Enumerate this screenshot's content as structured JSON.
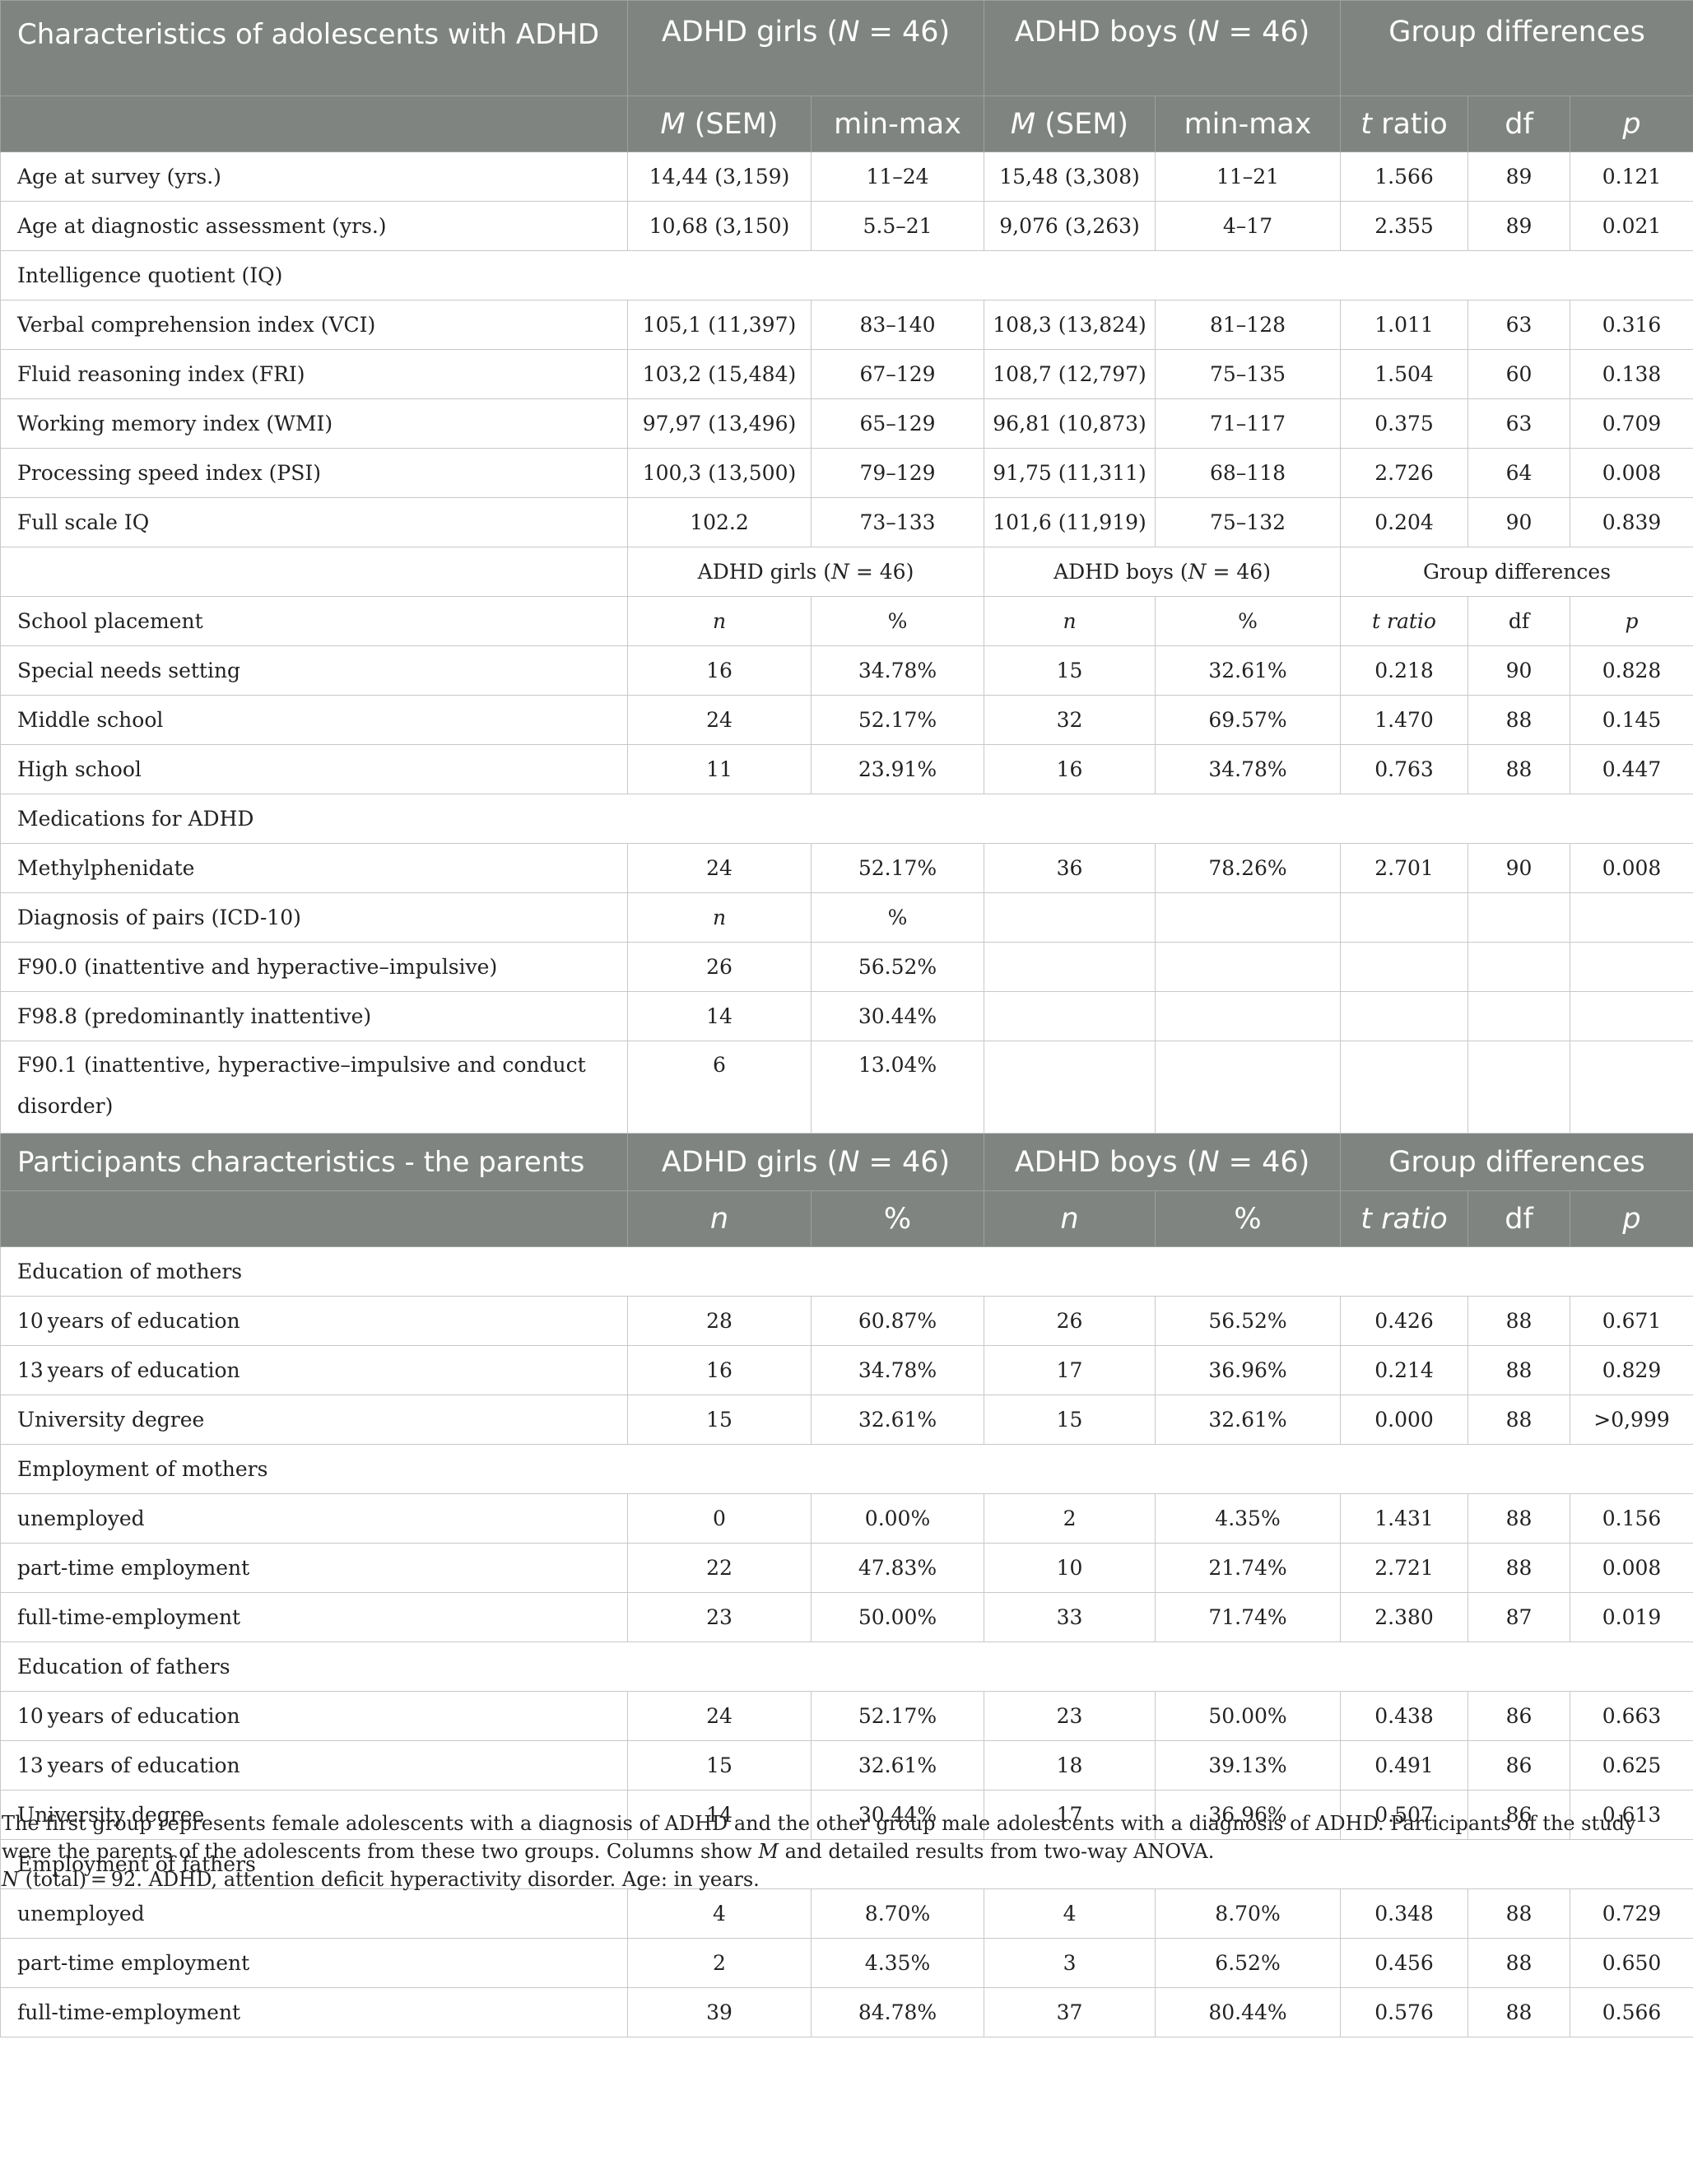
{
  "section1": {
    "title": "Characteristics of adolescents with ADHD",
    "group_headers": [
      "ADHD girls (N = 46)",
      "ADHD boys (N = 46)",
      "Group differences"
    ],
    "subheaders": [
      "M (SEM)",
      "min-max",
      "M (SEM)",
      "min-max",
      "t ratio",
      "df",
      "p"
    ],
    "rows": [
      [
        "Age at survey (yrs.)",
        "14,44 (3,159)",
        "11–24",
        "15,48 (3,308)",
        "11–21",
        "1.566",
        "89",
        "0.121"
      ],
      [
        "Age at diagnostic assessment (yrs.)",
        "10,68 (3,150)",
        "5.5–21",
        "9,076 (3,263)",
        "4–17",
        "2.355",
        "89",
        "0.021"
      ]
    ],
    "iq_label": "Intelligence quotient (IQ)",
    "iq_rows": [
      [
        "Verbal comprehension index (VCI)",
        "105,1 (11,397)",
        "83–140",
        "108,3 (13,824)",
        "81–128",
        "1.011",
        "63",
        "0.316"
      ],
      [
        "Fluid reasoning index (FRI)",
        "103,2 (15,484)",
        "67–129",
        "108,7 (12,797)",
        "75–135",
        "1.504",
        "60",
        "0.138"
      ],
      [
        "Working memory index (WMI)",
        "97,97 (13,496)",
        "65–129",
        "96,81 (10,873)",
        "71–117",
        "0.375",
        "63",
        "0.709"
      ],
      [
        "Processing speed index (PSI)",
        "100,3 (13,500)",
        "79–129",
        "91,75 (11,311)",
        "68–118",
        "2.726",
        "64",
        "0.008"
      ],
      [
        "Full scale IQ",
        "102.2",
        "73–133",
        "101,6 (11,919)",
        "75–132",
        "0.204",
        "90",
        "0.839"
      ]
    ],
    "sub_group_headers": [
      "ADHD girls (N = 46)",
      "ADHD boys (N = 46)",
      "Group differences"
    ],
    "school_label": "School placement",
    "school_subheaders": [
      "n",
      "%",
      "n",
      "%",
      "t ratio",
      "df",
      "p"
    ],
    "school_rows": [
      [
        "Special needs setting",
        "16",
        "34.78%",
        "15",
        "32.61%",
        "0.218",
        "90",
        "0.828"
      ],
      [
        "Middle school",
        "24",
        "52.17%",
        "32",
        "69.57%",
        "1.470",
        "88",
        "0.145"
      ],
      [
        "High school",
        "11",
        "23.91%",
        "16",
        "34.78%",
        "0.763",
        "88",
        "0.447"
      ]
    ],
    "medication_label": "Medications for ADHD",
    "medication_rows": [
      [
        "Methylphenidate",
        "24",
        "52.17%",
        "36",
        "78.26%",
        "2.701",
        "90",
        "0.008"
      ]
    ],
    "diagnosis_label": "Diagnosis of pairs (ICD-10)",
    "diagnosis_subheaders": [
      "n",
      "%"
    ],
    "diagnosis_rows": [
      [
        "F90.0 (inattentive and hyperactive–impulsive)",
        "26",
        "56.52%"
      ],
      [
        "F98.8 (predominantly inattentive)",
        "14",
        "30.44%"
      ],
      [
        "F90.1 (inattentive, hyperactive–impulsive and conduct disorder)",
        "6",
        "13.04%"
      ]
    ]
  },
  "section2": {
    "title": "Participants characteristics - the parents",
    "group_headers": [
      "ADHD girls (N = 46)",
      "ADHD boys (N = 46)",
      "Group differences"
    ],
    "subheaders": [
      "n",
      "%",
      "n",
      "%",
      "t ratio",
      "df",
      "p"
    ],
    "groups": [
      {
        "label": "Education of mothers",
        "rows": [
          [
            "10 years of education",
            "28",
            "60.87%",
            "26",
            "56.52%",
            "0.426",
            "88",
            "0.671"
          ],
          [
            "13 years of education",
            "16",
            "34.78%",
            "17",
            "36.96%",
            "0.214",
            "88",
            "0.829"
          ],
          [
            "University degree",
            "15",
            "32.61%",
            "15",
            "32.61%",
            "0.000",
            "88",
            ">0,999"
          ]
        ]
      },
      {
        "label": "Employment of mothers",
        "rows": [
          [
            "unemployed",
            "0",
            "0.00%",
            "2",
            "4.35%",
            "1.431",
            "88",
            "0.156"
          ],
          [
            "part-time employment",
            "22",
            "47.83%",
            "10",
            "21.74%",
            "2.721",
            "88",
            "0.008"
          ],
          [
            "full-time-employment",
            "23",
            "50.00%",
            "33",
            "71.74%",
            "2.380",
            "87",
            "0.019"
          ]
        ]
      },
      {
        "label": "Education of fathers",
        "rows": [
          [
            "10 years of education",
            "24",
            "52.17%",
            "23",
            "50.00%",
            "0.438",
            "86",
            "0.663"
          ],
          [
            "13 years of education",
            "15",
            "32.61%",
            "18",
            "39.13%",
            "0.491",
            "86",
            "0.625"
          ],
          [
            "University degree",
            "14",
            "30.44%",
            "17",
            "36.96%",
            "0.507",
            "86",
            "0.613"
          ]
        ]
      },
      {
        "label": "Employment of fathers",
        "rows": [
          [
            "unemployed",
            "4",
            "8.70%",
            "4",
            "8.70%",
            "0.348",
            "88",
            "0.729"
          ],
          [
            "part-time employment",
            "2",
            "4.35%",
            "3",
            "6.52%",
            "0.456",
            "88",
            "0.650"
          ],
          [
            "full-time-employment",
            "39",
            "84.78%",
            "37",
            "80.44%",
            "0.576",
            "88",
            "0.566"
          ]
        ]
      }
    ]
  },
  "footnote": {
    "line1": "The first group represents female adolescents with a diagnosis of ADHD and the other group male adolescents with a diagnosis of ADHD. Participants of the study were the parents of the adolescents from these two groups. Columns show M and detailed results from two-way ANOVA.",
    "line2": "N (total) = 92. ADHD, attention deficit hyperactivity disorder. Age: in years."
  }
}
